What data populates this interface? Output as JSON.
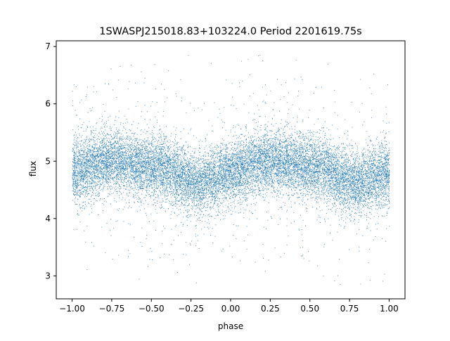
{
  "chart_data": {
    "type": "scatter",
    "title": "1SWASPJ215018.83+103224.0 Period 2201619.75s",
    "xlabel": "phase",
    "ylabel": "flux",
    "xlim": [
      -1.1,
      1.1
    ],
    "ylim": [
      2.6,
      7.1
    ],
    "xticks": [
      {
        "value": -1.0,
        "label": "−1.00"
      },
      {
        "value": -0.75,
        "label": "−0.75"
      },
      {
        "value": -0.5,
        "label": "−0.50"
      },
      {
        "value": -0.25,
        "label": "−0.25"
      },
      {
        "value": 0.0,
        "label": "0.00"
      },
      {
        "value": 0.25,
        "label": "0.25"
      },
      {
        "value": 0.5,
        "label": "0.50"
      },
      {
        "value": 0.75,
        "label": "0.75"
      },
      {
        "value": 1.0,
        "label": "1.00"
      }
    ],
    "yticks": [
      {
        "value": 3,
        "label": "3"
      },
      {
        "value": 4,
        "label": "4"
      },
      {
        "value": 5,
        "label": "5"
      },
      {
        "value": 6,
        "label": "6"
      },
      {
        "value": 7,
        "label": "7"
      }
    ],
    "grid": false,
    "marker_color": "#1f77b4",
    "series": [
      {
        "profile_phase": [
          -1.0,
          -0.9,
          -0.8,
          -0.7,
          -0.6,
          -0.5,
          -0.4,
          -0.3,
          -0.2,
          -0.1,
          0.0,
          0.1,
          0.2,
          0.3,
          0.4,
          0.5,
          0.6,
          0.7,
          0.8,
          0.9,
          1.0
        ],
        "profile_flux": [
          4.8,
          4.9,
          5.0,
          5.0,
          4.95,
          4.9,
          4.85,
          4.7,
          4.6,
          4.7,
          4.8,
          4.9,
          5.0,
          5.0,
          4.95,
          4.9,
          4.85,
          4.7,
          4.6,
          4.7,
          4.8
        ],
        "scatter_sigma": 0.28,
        "point_count": 16000,
        "flux_range_observed": [
          2.8,
          7.0
        ]
      }
    ]
  }
}
